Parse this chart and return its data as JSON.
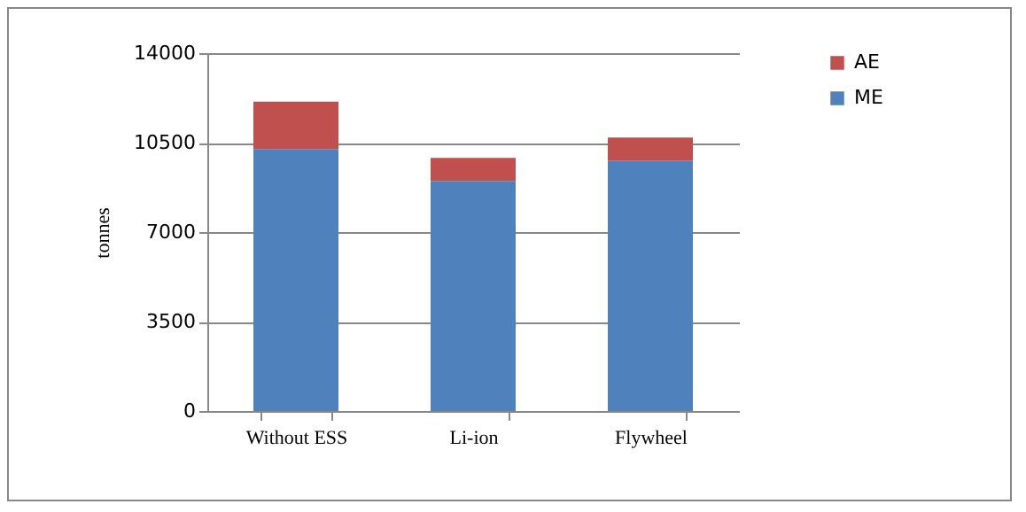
{
  "chart_data": {
    "type": "bar",
    "stacked": true,
    "ylabel": "tonnes",
    "categories": [
      "Without ESS",
      "Li-ion",
      "Flywheel"
    ],
    "series": [
      {
        "name": "ME",
        "color": "#4f81bd",
        "values": [
          10250,
          9000,
          9800
        ]
      },
      {
        "name": "AE",
        "color": "#c0504d",
        "values": [
          1850,
          900,
          900
        ]
      }
    ],
    "ylim": [
      0,
      14000
    ],
    "yticks": [
      0,
      3500,
      7000,
      10500,
      14000
    ],
    "grid": "y",
    "legend": "right"
  }
}
